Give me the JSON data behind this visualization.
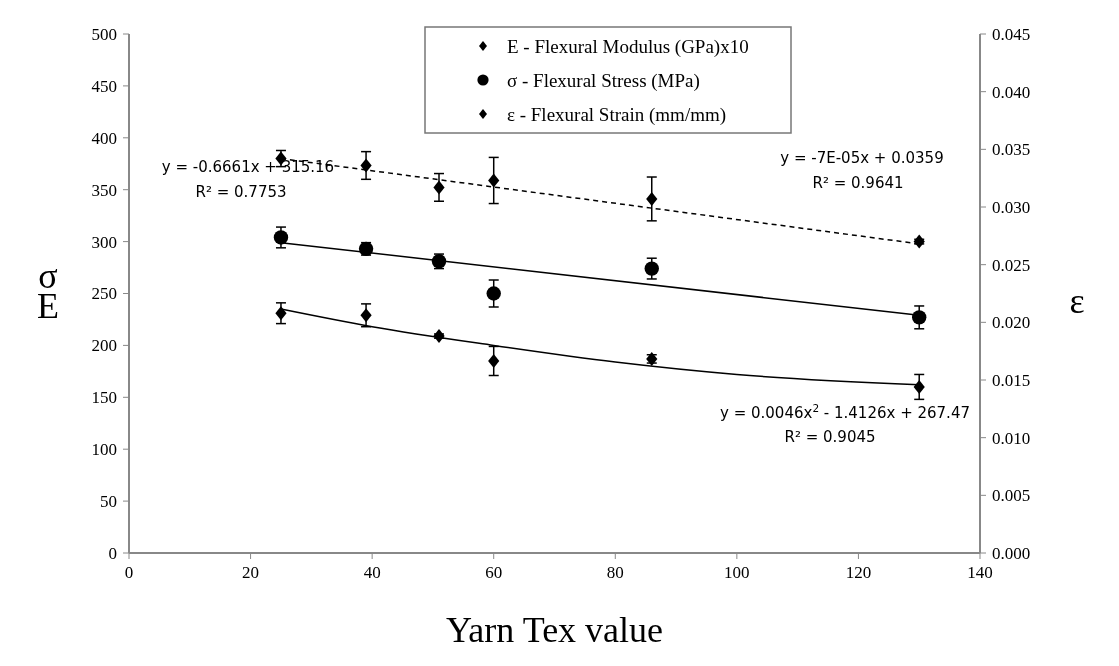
{
  "chart_data": {
    "type": "scatter",
    "xlabel": "Yarn Tex value",
    "ylabel": "σ\nE",
    "y2label": "ε",
    "x": [
      25,
      39,
      51,
      60,
      86,
      130
    ],
    "series": [
      {
        "name": "E - Flexural Modulus (GPa)x10",
        "marker": "diamond",
        "color": "#000000",
        "values": [
          231,
          229,
          209,
          185,
          187,
          160
        ],
        "errors": [
          10,
          11,
          2,
          14,
          4,
          12
        ]
      },
      {
        "name": "σ - Flexural Stress (MPa)",
        "marker": "circle",
        "color": "#000000",
        "values": [
          304,
          293,
          281,
          250,
          274,
          227
        ],
        "errors": [
          10,
          6,
          7,
          13,
          10,
          11
        ]
      },
      {
        "name": "ε - Flexural Strain (mm/mm)",
        "marker": "diamond",
        "color": "#000000",
        "axis": "y2",
        "values": [
          0.0342,
          0.0336,
          0.0317,
          0.0323,
          0.0307,
          0.027
        ],
        "errors": [
          0.0007,
          0.0012,
          0.0012,
          0.002,
          0.0019,
          0.0002
        ]
      },
      {
        "type": "line",
        "line_style": "solid",
        "color": "#000000",
        "x": [
          25,
          40,
          60,
          80,
          100,
          130
        ],
        "values": [
          235,
          218,
          200,
          184,
          172,
          162
        ]
      },
      {
        "type": "line",
        "line_style": "solid",
        "color": "#000000",
        "x": [
          25,
          130
        ],
        "values": [
          299,
          229
        ]
      },
      {
        "type": "line",
        "line_style": "dashed",
        "color": "#000000",
        "axis": "y2",
        "x": [
          25,
          130
        ],
        "values": [
          0.0342,
          0.0268
        ]
      }
    ],
    "xlim": [
      0,
      140
    ],
    "xticks": [
      0,
      20,
      40,
      60,
      80,
      100,
      120,
      140
    ],
    "ylim": [
      0,
      500
    ],
    "yticks": [
      0,
      50,
      100,
      150,
      200,
      250,
      300,
      350,
      400,
      450,
      500
    ],
    "y2lim": [
      0,
      0.045
    ],
    "y2ticks": [
      {
        "value": 0,
        "label": "0.000"
      },
      {
        "value": 0.005,
        "label": "0.005"
      },
      {
        "value": 0.01,
        "label": "0.010"
      },
      {
        "value": 0.015,
        "label": "0.015"
      },
      {
        "value": 0.02,
        "label": "0.020"
      },
      {
        "value": 0.025,
        "label": "0.025"
      },
      {
        "value": 0.03,
        "label": "0.030"
      },
      {
        "value": 0.035,
        "label": "0.035"
      },
      {
        "value": 0.04,
        "label": "0.040"
      },
      {
        "value": 0.045,
        "label": "0.045"
      }
    ],
    "legend": "top",
    "grid": false,
    "annotations": [
      "y = -0.6661x + 315.16",
      "R² = 0.7753",
      "y = -7E-05x + 0.0359",
      "R² = 0.9641",
      "y = 0.0046x$^{2}$ - 1.4126x + 267.47",
      "R² = 0.9045"
    ]
  }
}
